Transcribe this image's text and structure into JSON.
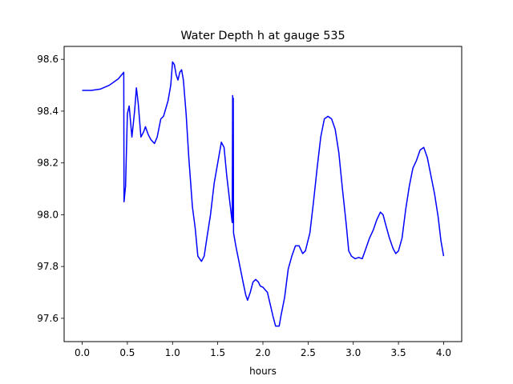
{
  "chart_data": {
    "type": "line",
    "title": "Water Depth h at gauge 535",
    "xlabel": "hours",
    "ylabel": "",
    "xlim": [
      -0.2,
      4.2
    ],
    "ylim": [
      97.51,
      98.65
    ],
    "x_ticks": [
      "0.0",
      "0.5",
      "1.0",
      "1.5",
      "2.0",
      "2.5",
      "3.0",
      "3.5",
      "4.0"
    ],
    "y_ticks": [
      "97.6",
      "97.8",
      "98.0",
      "98.2",
      "98.4",
      "98.6"
    ],
    "grid": false,
    "colors": {
      "line": "#0000ff"
    },
    "series": [
      {
        "points": [
          [
            0.0,
            98.48
          ],
          [
            0.1,
            98.48
          ],
          [
            0.2,
            98.485
          ],
          [
            0.3,
            98.5
          ],
          [
            0.4,
            98.525
          ],
          [
            0.46,
            98.55
          ],
          [
            0.463,
            98.05
          ],
          [
            0.48,
            98.11
          ],
          [
            0.5,
            98.39
          ],
          [
            0.52,
            98.42
          ],
          [
            0.55,
            98.3
          ],
          [
            0.58,
            98.4
          ],
          [
            0.6,
            98.49
          ],
          [
            0.62,
            98.43
          ],
          [
            0.65,
            98.3
          ],
          [
            0.68,
            98.32
          ],
          [
            0.7,
            98.34
          ],
          [
            0.73,
            98.31
          ],
          [
            0.76,
            98.29
          ],
          [
            0.8,
            98.275
          ],
          [
            0.83,
            98.3
          ],
          [
            0.87,
            98.37
          ],
          [
            0.9,
            98.38
          ],
          [
            0.95,
            98.44
          ],
          [
            0.98,
            98.5
          ],
          [
            1.0,
            98.59
          ],
          [
            1.02,
            98.58
          ],
          [
            1.04,
            98.54
          ],
          [
            1.06,
            98.52
          ],
          [
            1.08,
            98.55
          ],
          [
            1.1,
            98.56
          ],
          [
            1.12,
            98.52
          ],
          [
            1.15,
            98.39
          ],
          [
            1.18,
            98.22
          ],
          [
            1.22,
            98.03
          ],
          [
            1.25,
            97.95
          ],
          [
            1.28,
            97.84
          ],
          [
            1.3,
            97.83
          ],
          [
            1.32,
            97.82
          ],
          [
            1.35,
            97.84
          ],
          [
            1.38,
            97.91
          ],
          [
            1.42,
            98.0
          ],
          [
            1.46,
            98.12
          ],
          [
            1.5,
            98.2
          ],
          [
            1.54,
            98.28
          ],
          [
            1.57,
            98.26
          ],
          [
            1.6,
            98.15
          ],
          [
            1.64,
            98.03
          ],
          [
            1.66,
            97.97
          ],
          [
            1.665,
            98.46
          ],
          [
            1.668,
            97.97
          ],
          [
            1.672,
            98.45
          ],
          [
            1.675,
            97.93
          ],
          [
            1.7,
            97.88
          ],
          [
            1.74,
            97.81
          ],
          [
            1.78,
            97.74
          ],
          [
            1.81,
            97.69
          ],
          [
            1.83,
            97.67
          ],
          [
            1.86,
            97.7
          ],
          [
            1.89,
            97.74
          ],
          [
            1.92,
            97.75
          ],
          [
            1.95,
            97.74
          ],
          [
            1.97,
            97.725
          ],
          [
            2.0,
            97.72
          ],
          [
            2.05,
            97.7
          ],
          [
            2.08,
            97.655
          ],
          [
            2.11,
            97.61
          ],
          [
            2.14,
            97.57
          ],
          [
            2.18,
            97.57
          ],
          [
            2.2,
            97.61
          ],
          [
            2.24,
            97.68
          ],
          [
            2.28,
            97.79
          ],
          [
            2.32,
            97.84
          ],
          [
            2.36,
            97.88
          ],
          [
            2.4,
            97.88
          ],
          [
            2.44,
            97.85
          ],
          [
            2.47,
            97.86
          ],
          [
            2.52,
            97.93
          ],
          [
            2.56,
            98.05
          ],
          [
            2.6,
            98.18
          ],
          [
            2.64,
            98.3
          ],
          [
            2.68,
            98.37
          ],
          [
            2.72,
            98.38
          ],
          [
            2.76,
            98.37
          ],
          [
            2.8,
            98.33
          ],
          [
            2.84,
            98.24
          ],
          [
            2.88,
            98.1
          ],
          [
            2.92,
            97.97
          ],
          [
            2.95,
            97.86
          ],
          [
            2.98,
            97.84
          ],
          [
            3.02,
            97.83
          ],
          [
            3.06,
            97.835
          ],
          [
            3.1,
            97.83
          ],
          [
            3.14,
            97.87
          ],
          [
            3.18,
            97.91
          ],
          [
            3.22,
            97.94
          ],
          [
            3.26,
            97.98
          ],
          [
            3.3,
            98.01
          ],
          [
            3.33,
            98.0
          ],
          [
            3.36,
            97.96
          ],
          [
            3.4,
            97.91
          ],
          [
            3.44,
            97.87
          ],
          [
            3.47,
            97.85
          ],
          [
            3.5,
            97.86
          ],
          [
            3.54,
            97.91
          ],
          [
            3.58,
            98.02
          ],
          [
            3.62,
            98.11
          ],
          [
            3.66,
            98.18
          ],
          [
            3.7,
            98.21
          ],
          [
            3.74,
            98.25
          ],
          [
            3.78,
            98.26
          ],
          [
            3.82,
            98.22
          ],
          [
            3.86,
            98.15
          ],
          [
            3.9,
            98.08
          ],
          [
            3.94,
            97.99
          ],
          [
            3.97,
            97.9
          ],
          [
            4.0,
            97.84
          ]
        ]
      }
    ]
  }
}
